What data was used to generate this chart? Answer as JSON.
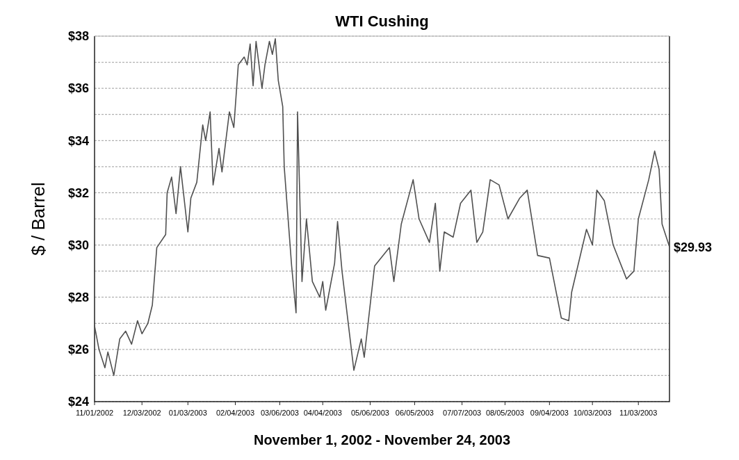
{
  "chart_data": {
    "type": "line",
    "title": "WTI Cushing",
    "xlabel": "November 1, 2002 - November 24, 2003",
    "ylabel": "$ / Barrel",
    "x": [
      "2002-11-01",
      "2002-11-04",
      "2002-11-08",
      "2002-11-10",
      "2002-11-14",
      "2002-11-18",
      "2002-11-22",
      "2002-11-26",
      "2002-11-30",
      "2002-12-03",
      "2002-12-07",
      "2002-12-10",
      "2002-12-13",
      "2002-12-19",
      "2002-12-20",
      "2002-12-23",
      "2002-12-26",
      "2002-12-29",
      "2003-01-03",
      "2003-01-05",
      "2003-01-09",
      "2003-01-13",
      "2003-01-15",
      "2003-01-18",
      "2003-01-20",
      "2003-01-24",
      "2003-01-26",
      "2003-01-31",
      "2003-02-03",
      "2003-02-06",
      "2003-02-10",
      "2003-02-12",
      "2003-02-14",
      "2003-02-16",
      "2003-02-18",
      "2003-02-22",
      "2003-02-24",
      "2003-02-27",
      "2003-03-01",
      "2003-03-03",
      "2003-03-05",
      "2003-03-08",
      "2003-03-09",
      "2003-03-14",
      "2003-03-17",
      "2003-03-18",
      "2003-03-21",
      "2003-03-24",
      "2003-03-28",
      "2003-04-02",
      "2003-04-04",
      "2003-04-06",
      "2003-04-12",
      "2003-04-14",
      "2003-04-17",
      "2003-04-25",
      "2003-04-30",
      "2003-05-02",
      "2003-05-09",
      "2003-05-19",
      "2003-05-22",
      "2003-05-27",
      "2003-06-04",
      "2003-06-08",
      "2003-06-15",
      "2003-06-19",
      "2003-06-22",
      "2003-06-25",
      "2003-07-01",
      "2003-07-06",
      "2003-07-13",
      "2003-07-17",
      "2003-07-21",
      "2003-07-26",
      "2003-08-01",
      "2003-08-07",
      "2003-08-15",
      "2003-08-20",
      "2003-08-27",
      "2003-09-04",
      "2003-09-12",
      "2003-09-17",
      "2003-09-19",
      "2003-09-29",
      "2003-10-03",
      "2003-10-06",
      "2003-10-11",
      "2003-10-17",
      "2003-10-26",
      "2003-10-31",
      "2003-11-03",
      "2003-11-10",
      "2003-11-14",
      "2003-11-17",
      "2003-11-19",
      "2003-11-24"
    ],
    "series": [
      {
        "color": "#505050",
        "values": [
          26.9,
          26.0,
          25.3,
          25.9,
          25.0,
          26.4,
          26.7,
          26.2,
          27.1,
          26.6,
          27.0,
          27.7,
          29.9,
          30.4,
          32.0,
          32.6,
          31.2,
          33.0,
          30.5,
          31.8,
          32.4,
          34.6,
          34.0,
          35.1,
          32.3,
          33.7,
          32.8,
          35.1,
          34.5,
          36.9,
          37.2,
          36.9,
          37.7,
          36.1,
          37.8,
          36.0,
          36.9,
          37.8,
          37.3,
          37.9,
          36.3,
          35.3,
          33.0,
          29.2,
          27.4,
          35.1,
          28.6,
          31.0,
          28.6,
          28.0,
          28.6,
          27.5,
          29.3,
          30.9,
          29.0,
          25.2,
          26.4,
          25.7,
          29.2,
          29.9,
          28.6,
          30.8,
          32.5,
          31.0,
          30.1,
          31.6,
          29.0,
          30.5,
          30.3,
          31.6,
          32.1,
          30.1,
          30.5,
          32.5,
          32.3,
          31.0,
          31.8,
          32.1,
          29.6,
          29.5,
          27.2,
          27.1,
          28.2,
          30.6,
          30.0,
          32.1,
          31.7,
          30.0,
          28.7,
          29.0,
          31.0,
          32.5,
          33.6,
          32.9,
          30.8,
          29.93
        ]
      }
    ],
    "xlim": [
      "2002-11-01",
      "2003-11-24"
    ],
    "xticks": [
      {
        "value": "2002-11-01",
        "label": "11/01/2002"
      },
      {
        "value": "2002-12-03",
        "label": "12/03/2002"
      },
      {
        "value": "2003-01-03",
        "label": "01/03/2003"
      },
      {
        "value": "2003-02-04",
        "label": "02/04/2003"
      },
      {
        "value": "2003-03-06",
        "label": "03/06/2003"
      },
      {
        "value": "2003-04-04",
        "label": "04/04/2003"
      },
      {
        "value": "2003-05-06",
        "label": "05/06/2003"
      },
      {
        "value": "2003-06-05",
        "label": "06/05/2003"
      },
      {
        "value": "2003-07-07",
        "label": "07/07/2003"
      },
      {
        "value": "2003-08-05",
        "label": "08/05/2003"
      },
      {
        "value": "2003-09-04",
        "label": "09/04/2003"
      },
      {
        "value": "2003-10-03",
        "label": "10/03/2003"
      },
      {
        "value": "2003-11-03",
        "label": "11/03/2003"
      }
    ],
    "ylim": [
      24,
      38
    ],
    "yticks": [
      {
        "value": 24,
        "label": "$24"
      },
      {
        "value": 25,
        "label": null
      },
      {
        "value": 26,
        "label": "$26"
      },
      {
        "value": 27,
        "label": null
      },
      {
        "value": 28,
        "label": "$28"
      },
      {
        "value": 29,
        "label": null
      },
      {
        "value": 30,
        "label": "$30"
      },
      {
        "value": 31,
        "label": null
      },
      {
        "value": 32,
        "label": "$32"
      },
      {
        "value": 33,
        "label": null
      },
      {
        "value": 34,
        "label": "$34"
      },
      {
        "value": 35,
        "label": null
      },
      {
        "value": 36,
        "label": "$36"
      },
      {
        "value": 37,
        "label": null
      },
      {
        "value": 38,
        "label": "$38"
      }
    ],
    "grid": "y",
    "line_style": "solid",
    "marker": "none",
    "annotations": [
      {
        "text": "$29.93",
        "x": "2003-11-24",
        "y": 29.93
      }
    ]
  }
}
